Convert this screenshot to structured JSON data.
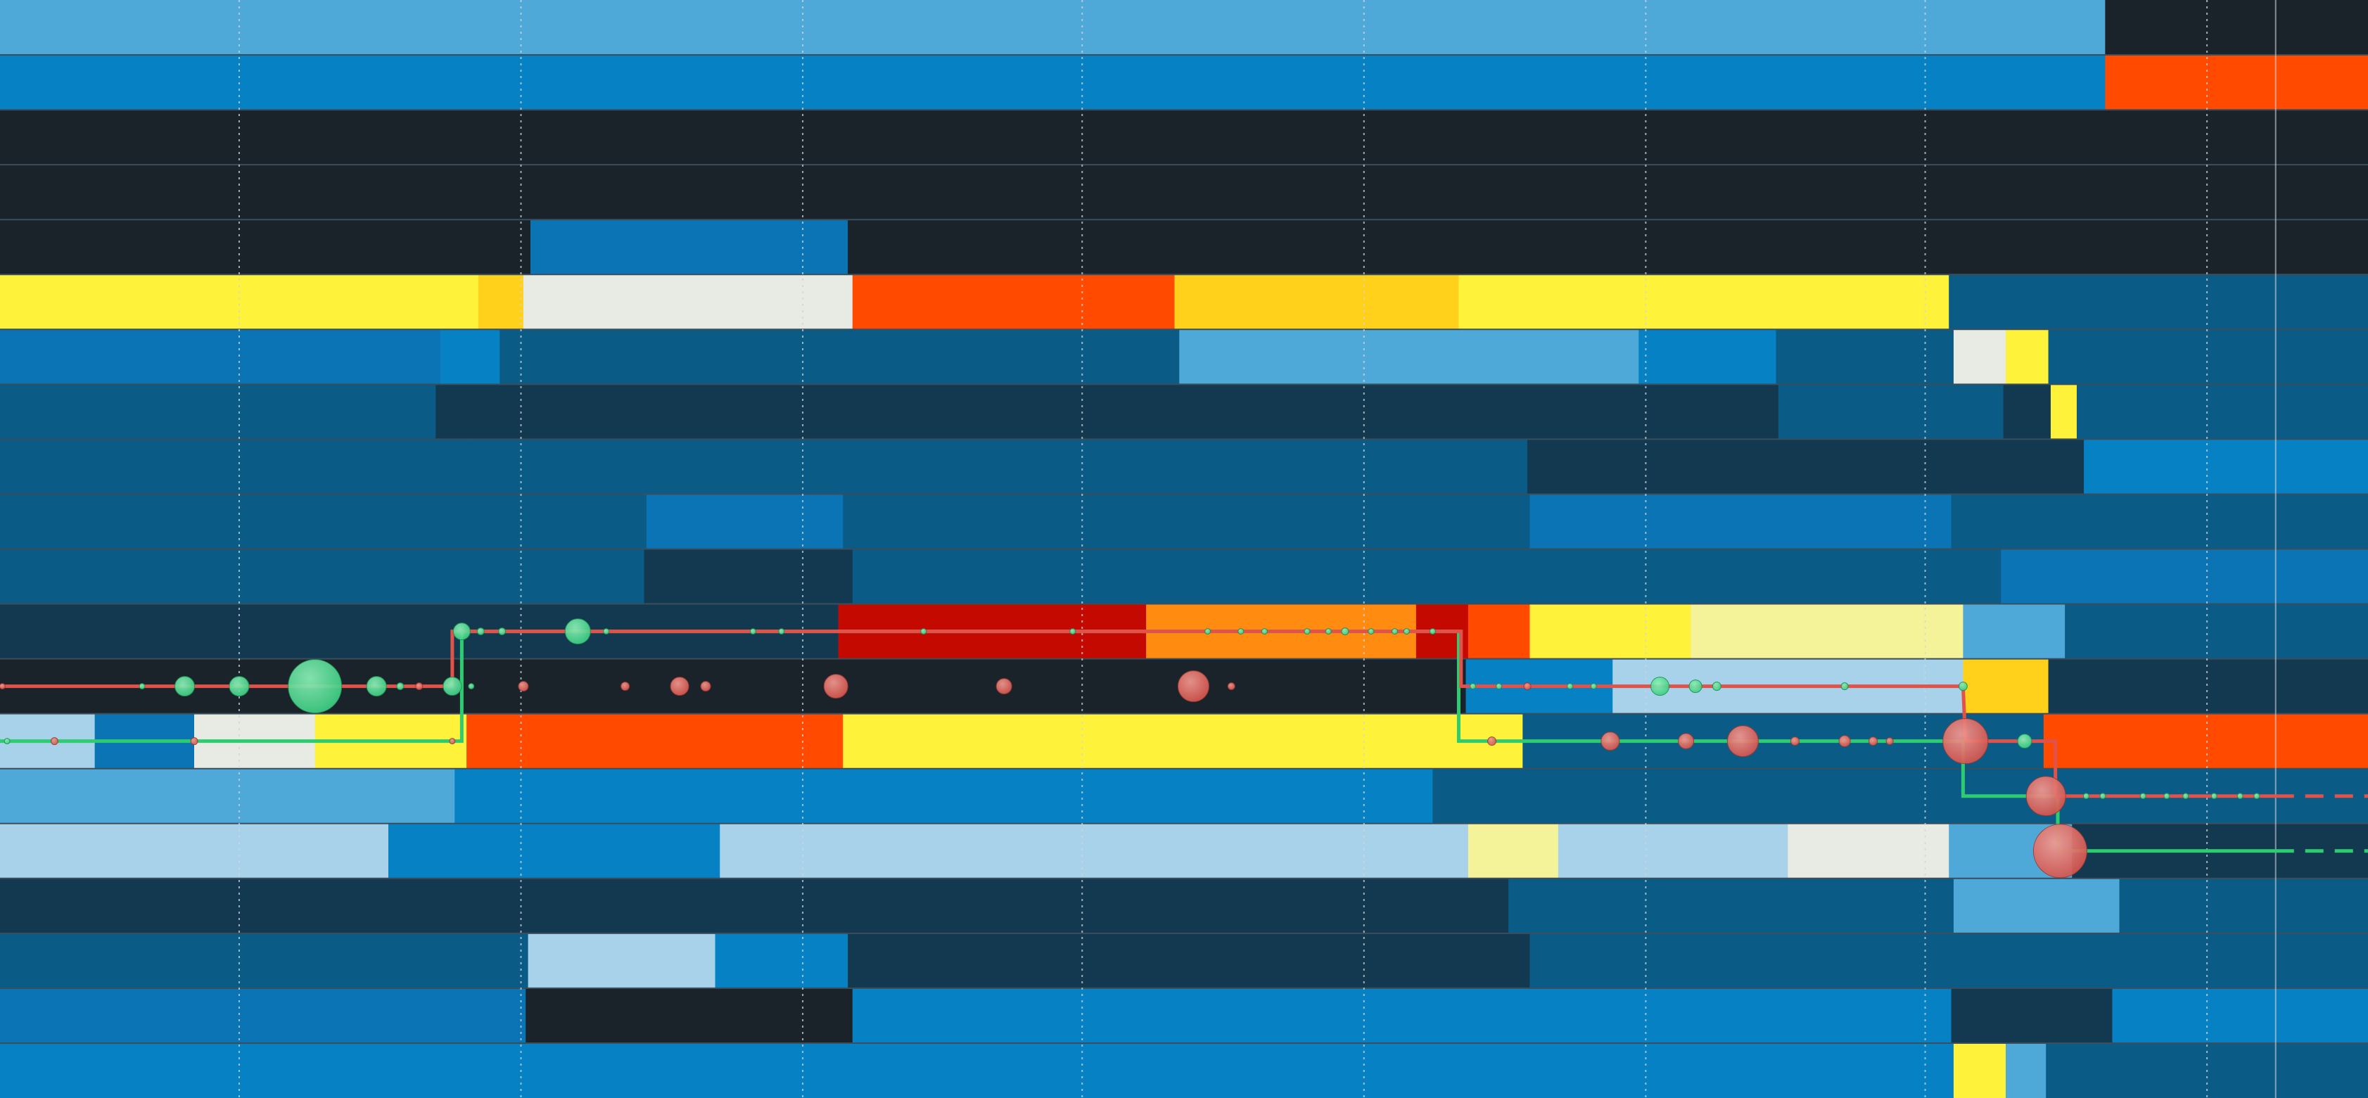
{
  "chart_data": {
    "type": "heatmap",
    "n_rows": 20,
    "x_range": [
      0,
      100
    ],
    "colors": {
      "background": "#1b232a",
      "dark": "#1b232a",
      "navy": "#12394f",
      "deep_blue": "#0b5b87",
      "mid_blue": "#0a74b4",
      "blue": "#0681c4",
      "light_blue": "#4ea9d8",
      "pale_blue": "#a8d2ea",
      "pale": "#e8ebe3",
      "pale_yellow": "#f4f39a",
      "yellow": "#fff23a",
      "gold": "#ffd11a",
      "orange": "#ff8c10",
      "orange_red": "#ff4a00",
      "red": "#e81d00",
      "crimson": "#c40a00",
      "row_separator": "#3a4e5c",
      "gridline": "#cfd6dc",
      "green_path": "#2ecc71",
      "red_path": "#e0524a",
      "green_bubble": "#3fd084",
      "red_bubble": "#d8574f"
    },
    "vertical_gridlines_x": [
      10.1,
      22.0,
      33.9,
      45.7,
      57.6,
      69.5,
      81.3,
      93.2
    ],
    "cursor_line_x": 96.1,
    "rows": [
      [
        [
          0,
          88.9,
          "light_blue"
        ],
        [
          88.9,
          100,
          "dark"
        ]
      ],
      [
        [
          0,
          88.9,
          "blue"
        ],
        [
          88.9,
          100,
          "orange_red"
        ]
      ],
      [
        [
          0,
          100,
          "dark"
        ]
      ],
      [
        [
          0,
          100,
          "dark"
        ]
      ],
      [
        [
          0,
          22.4,
          "dark"
        ],
        [
          22.4,
          35.8,
          "mid_blue"
        ],
        [
          35.8,
          100,
          "dark"
        ]
      ],
      [
        [
          0,
          20.2,
          "yellow"
        ],
        [
          20.2,
          22.1,
          "gold"
        ],
        [
          22.1,
          36.0,
          "pale"
        ],
        [
          36.0,
          49.6,
          "orange_red"
        ],
        [
          49.6,
          61.6,
          "gold"
        ],
        [
          61.6,
          82.3,
          "yellow"
        ],
        [
          82.3,
          100,
          "deep_blue"
        ]
      ],
      [
        [
          0,
          18.6,
          "mid_blue"
        ],
        [
          18.6,
          21.1,
          "blue"
        ],
        [
          21.1,
          49.8,
          "deep_blue"
        ],
        [
          49.8,
          69.2,
          "light_blue"
        ],
        [
          69.2,
          75.0,
          "blue"
        ],
        [
          75.0,
          82.5,
          "deep_blue"
        ],
        [
          82.5,
          84.7,
          "pale"
        ],
        [
          84.7,
          86.5,
          "yellow"
        ],
        [
          86.5,
          100,
          "deep_blue"
        ]
      ],
      [
        [
          0,
          18.4,
          "deep_blue"
        ],
        [
          18.4,
          75.1,
          "navy"
        ],
        [
          75.1,
          84.6,
          "deep_blue"
        ],
        [
          84.6,
          86.6,
          "navy"
        ],
        [
          86.6,
          87.7,
          "yellow"
        ],
        [
          87.7,
          100,
          "deep_blue"
        ]
      ],
      [
        [
          0,
          19.9,
          "deep_blue"
        ],
        [
          19.9,
          64.5,
          "deep_blue"
        ],
        [
          64.5,
          88.0,
          "navy"
        ],
        [
          88.0,
          100,
          "blue"
        ]
      ],
      [
        [
          0,
          27.3,
          "deep_blue"
        ],
        [
          27.3,
          35.6,
          "mid_blue"
        ],
        [
          35.6,
          64.6,
          "deep_blue"
        ],
        [
          64.6,
          82.4,
          "mid_blue"
        ],
        [
          82.4,
          100,
          "deep_blue"
        ]
      ],
      [
        [
          0,
          27.2,
          "deep_blue"
        ],
        [
          27.2,
          36.0,
          "navy"
        ],
        [
          36.0,
          50.5,
          "deep_blue"
        ],
        [
          50.5,
          84.5,
          "deep_blue"
        ],
        [
          84.5,
          100,
          "mid_blue"
        ]
      ],
      [
        [
          0,
          16.6,
          "navy"
        ],
        [
          16.6,
          35.4,
          "navy"
        ],
        [
          35.4,
          48.4,
          "crimson"
        ],
        [
          48.4,
          59.8,
          "orange"
        ],
        [
          59.8,
          62.0,
          "crimson"
        ],
        [
          62.0,
          64.6,
          "orange_red"
        ],
        [
          64.6,
          71.4,
          "yellow"
        ],
        [
          71.4,
          82.9,
          "pale_yellow"
        ],
        [
          82.9,
          87.2,
          "light_blue"
        ],
        [
          87.2,
          100,
          "deep_blue"
        ]
      ],
      [
        [
          0,
          35.6,
          "dark"
        ],
        [
          35.6,
          61.9,
          "dark"
        ],
        [
          61.9,
          68.1,
          "blue"
        ],
        [
          68.1,
          82.9,
          "pale_blue"
        ],
        [
          82.9,
          86.5,
          "gold"
        ],
        [
          86.5,
          100,
          "navy"
        ]
      ],
      [
        [
          0,
          4.0,
          "pale_blue"
        ],
        [
          4.0,
          8.2,
          "mid_blue"
        ],
        [
          8.2,
          13.3,
          "pale"
        ],
        [
          13.3,
          19.7,
          "yellow"
        ],
        [
          19.7,
          35.6,
          "orange_red"
        ],
        [
          35.6,
          64.3,
          "yellow"
        ],
        [
          64.3,
          86.3,
          "deep_blue"
        ],
        [
          86.3,
          100,
          "orange_red"
        ]
      ],
      [
        [
          0,
          19.2,
          "light_blue"
        ],
        [
          19.2,
          35.7,
          "blue"
        ],
        [
          35.7,
          60.5,
          "blue"
        ],
        [
          60.5,
          100,
          "deep_blue"
        ]
      ],
      [
        [
          0,
          13.1,
          "pale_blue"
        ],
        [
          13.1,
          16.4,
          "pale_blue"
        ],
        [
          16.4,
          30.4,
          "blue"
        ],
        [
          30.4,
          49.2,
          "pale_blue"
        ],
        [
          49.2,
          62.0,
          "pale_blue"
        ],
        [
          62.0,
          65.8,
          "pale_yellow"
        ],
        [
          65.8,
          75.5,
          "pale_blue"
        ],
        [
          75.5,
          82.3,
          "pale"
        ],
        [
          82.3,
          87.5,
          "light_blue"
        ],
        [
          87.5,
          100,
          "navy"
        ]
      ],
      [
        [
          0,
          63.7,
          "navy"
        ],
        [
          63.7,
          82.5,
          "deep_blue"
        ],
        [
          82.5,
          89.5,
          "light_blue"
        ],
        [
          89.5,
          100,
          "deep_blue"
        ]
      ],
      [
        [
          0,
          22.3,
          "deep_blue"
        ],
        [
          22.3,
          30.2,
          "pale_blue"
        ],
        [
          30.2,
          35.8,
          "blue"
        ],
        [
          35.8,
          64.6,
          "navy"
        ],
        [
          64.6,
          83.2,
          "deep_blue"
        ],
        [
          83.2,
          100,
          "deep_blue"
        ]
      ],
      [
        [
          0,
          22.2,
          "mid_blue"
        ],
        [
          22.2,
          36.0,
          "dark"
        ],
        [
          36.0,
          82.4,
          "blue"
        ],
        [
          82.4,
          89.2,
          "navy"
        ],
        [
          89.2,
          100,
          "blue"
        ]
      ],
      [
        [
          0,
          82.5,
          "blue"
        ],
        [
          82.5,
          84.7,
          "yellow"
        ],
        [
          84.7,
          86.4,
          "light_blue"
        ],
        [
          86.4,
          100,
          "deep_blue"
        ]
      ]
    ],
    "paths": [
      {
        "color": "green_path",
        "dashed_to_edge": true,
        "points": [
          [
            0,
            13.5
          ],
          [
            19.5,
            13.5
          ],
          [
            19.5,
            12.5
          ],
          [
            19.5,
            11.5
          ],
          [
            61.6,
            11.5
          ],
          [
            61.6,
            13.5
          ],
          [
            82.9,
            13.5
          ],
          [
            82.9,
            14.5
          ],
          [
            86.9,
            14.5
          ],
          [
            86.9,
            15.5
          ],
          [
            100,
            15.5
          ]
        ]
      },
      {
        "color": "red_path",
        "dashed_to_edge": true,
        "points": [
          [
            0,
            12.5
          ],
          [
            19.1,
            12.5
          ],
          [
            19.1,
            11.5
          ],
          [
            61.7,
            11.5
          ],
          [
            61.7,
            12.5
          ],
          [
            82.9,
            12.5
          ],
          [
            83.0,
            13.5
          ],
          [
            86.8,
            13.5
          ],
          [
            86.8,
            14.5
          ],
          [
            100,
            14.5
          ]
        ]
      }
    ],
    "bubbles": [
      [
        0.1,
        12.5,
        4,
        "red_bubble"
      ],
      [
        6.0,
        12.5,
        4,
        "green_bubble"
      ],
      [
        7.8,
        12.5,
        14,
        "green_bubble"
      ],
      [
        10.1,
        12.5,
        14,
        "green_bubble"
      ],
      [
        13.3,
        12.5,
        38,
        "green_bubble"
      ],
      [
        15.9,
        12.5,
        14,
        "green_bubble"
      ],
      [
        16.9,
        12.5,
        5,
        "green_bubble"
      ],
      [
        17.7,
        12.5,
        5,
        "red_bubble"
      ],
      [
        19.1,
        12.5,
        13,
        "green_bubble"
      ],
      [
        19.9,
        12.5,
        4,
        "green_bubble"
      ],
      [
        22.1,
        12.5,
        7,
        "red_bubble"
      ],
      [
        26.4,
        12.5,
        6,
        "red_bubble"
      ],
      [
        28.7,
        12.5,
        13,
        "red_bubble"
      ],
      [
        29.8,
        12.5,
        7,
        "red_bubble"
      ],
      [
        35.3,
        12.5,
        17,
        "red_bubble"
      ],
      [
        42.4,
        12.5,
        11,
        "red_bubble"
      ],
      [
        50.4,
        12.5,
        22,
        "red_bubble"
      ],
      [
        52.0,
        12.5,
        5,
        "red_bubble"
      ],
      [
        19.5,
        11.5,
        12,
        "green_bubble"
      ],
      [
        20.3,
        11.5,
        5,
        "green_bubble"
      ],
      [
        21.2,
        11.5,
        5,
        "green_bubble"
      ],
      [
        24.4,
        11.5,
        18,
        "green_bubble"
      ],
      [
        25.6,
        11.5,
        4,
        "green_bubble"
      ],
      [
        31.8,
        11.5,
        4,
        "green_bubble"
      ],
      [
        33.0,
        11.5,
        4,
        "green_bubble"
      ],
      [
        39.0,
        11.5,
        4,
        "green_bubble"
      ],
      [
        45.3,
        11.5,
        4,
        "green_bubble"
      ],
      [
        51.0,
        11.5,
        4,
        "green_bubble"
      ],
      [
        52.4,
        11.5,
        4,
        "green_bubble"
      ],
      [
        53.4,
        11.5,
        4,
        "green_bubble"
      ],
      [
        55.2,
        11.5,
        4,
        "green_bubble"
      ],
      [
        56.1,
        11.5,
        4,
        "green_bubble"
      ],
      [
        56.8,
        11.5,
        5,
        "green_bubble"
      ],
      [
        57.9,
        11.5,
        4,
        "green_bubble"
      ],
      [
        58.9,
        11.5,
        4,
        "green_bubble"
      ],
      [
        59.4,
        11.5,
        4,
        "green_bubble"
      ],
      [
        60.5,
        11.5,
        4,
        "green_bubble"
      ],
      [
        62.2,
        12.5,
        4,
        "green_bubble"
      ],
      [
        63.3,
        12.5,
        4,
        "green_bubble"
      ],
      [
        64.5,
        12.5,
        5,
        "red_bubble"
      ],
      [
        66.3,
        12.5,
        4,
        "green_bubble"
      ],
      [
        67.3,
        12.5,
        4,
        "green_bubble"
      ],
      [
        70.1,
        12.5,
        13,
        "green_bubble"
      ],
      [
        71.6,
        12.5,
        9,
        "green_bubble"
      ],
      [
        72.5,
        12.5,
        6,
        "green_bubble"
      ],
      [
        77.9,
        12.5,
        5,
        "green_bubble"
      ],
      [
        82.9,
        12.5,
        6,
        "green_bubble"
      ],
      [
        0.3,
        13.5,
        4,
        "green_bubble"
      ],
      [
        2.3,
        13.5,
        5,
        "red_bubble"
      ],
      [
        8.2,
        13.5,
        5,
        "red_bubble"
      ],
      [
        19.1,
        13.5,
        4,
        "red_bubble"
      ],
      [
        63.0,
        13.5,
        6,
        "red_bubble"
      ],
      [
        68.0,
        13.5,
        13,
        "red_bubble"
      ],
      [
        71.2,
        13.5,
        11,
        "red_bubble"
      ],
      [
        73.6,
        13.5,
        22,
        "red_bubble"
      ],
      [
        75.8,
        13.5,
        6,
        "red_bubble"
      ],
      [
        77.9,
        13.5,
        8,
        "red_bubble"
      ],
      [
        79.1,
        13.5,
        6,
        "red_bubble"
      ],
      [
        79.8,
        13.5,
        5,
        "red_bubble"
      ],
      [
        83.0,
        13.5,
        32,
        "red_bubble"
      ],
      [
        85.5,
        13.5,
        10,
        "green_bubble"
      ],
      [
        86.4,
        14.5,
        28,
        "red_bubble"
      ],
      [
        88.1,
        14.5,
        4,
        "green_bubble"
      ],
      [
        88.8,
        14.5,
        4,
        "green_bubble"
      ],
      [
        90.5,
        14.5,
        4,
        "green_bubble"
      ],
      [
        91.5,
        14.5,
        4,
        "green_bubble"
      ],
      [
        92.3,
        14.5,
        4,
        "green_bubble"
      ],
      [
        93.5,
        14.5,
        4,
        "green_bubble"
      ],
      [
        94.6,
        14.5,
        4,
        "green_bubble"
      ],
      [
        95.3,
        14.5,
        4,
        "green_bubble"
      ],
      [
        87.0,
        15.5,
        38,
        "red_bubble"
      ]
    ]
  }
}
